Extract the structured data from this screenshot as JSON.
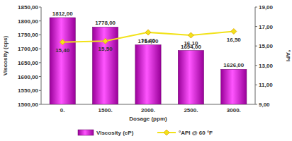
{
  "chart_data": {
    "type": "bar",
    "x_label": "Dosage (ppm)",
    "y_label": "Viscosity (cps)",
    "y2_label": "°API",
    "categories": [
      "0.",
      "1500.",
      "2000.",
      "2500.",
      "3000."
    ],
    "series": [
      {
        "name": "Viscosity (cP)",
        "type": "bar",
        "color": "#990099",
        "values": [
          1812,
          1778,
          1714,
          1694,
          1626
        ],
        "value_labels": [
          "1812,00",
          "1778,00",
          "1714,00",
          "1694,00",
          "1626,00"
        ]
      },
      {
        "name": "°API @ 60 °F",
        "type": "line",
        "axis": "y2",
        "color": "#f2e21a",
        "marker": "diamond",
        "values": [
          15.4,
          15.5,
          16.4,
          16.1,
          16.5
        ],
        "value_labels": [
          "15,40",
          "15,50",
          "16,40",
          "16,10",
          "16,50"
        ]
      }
    ],
    "ylim": [
      1500,
      1850
    ],
    "yticks": [
      {
        "value": 1500,
        "label": "1500,00"
      },
      {
        "value": 1550,
        "label": "1550,00"
      },
      {
        "value": 1600,
        "label": "1600,00"
      },
      {
        "value": 1650,
        "label": "1650,00"
      },
      {
        "value": 1700,
        "label": "1700,00"
      },
      {
        "value": 1750,
        "label": "1750,00"
      },
      {
        "value": 1800,
        "label": "1800,00"
      },
      {
        "value": 1850,
        "label": "1850,00"
      }
    ],
    "y2lim": [
      9,
      19
    ],
    "y2ticks": [
      {
        "value": 9,
        "label": "9,00"
      },
      {
        "value": 11,
        "label": "11,00"
      },
      {
        "value": 13,
        "label": "13,00"
      },
      {
        "value": 15,
        "label": "15,00"
      },
      {
        "value": 17,
        "label": "17,00"
      },
      {
        "value": 19,
        "label": "19,00"
      }
    ],
    "data_labels": true,
    "grid": false,
    "legend": "bottom"
  }
}
